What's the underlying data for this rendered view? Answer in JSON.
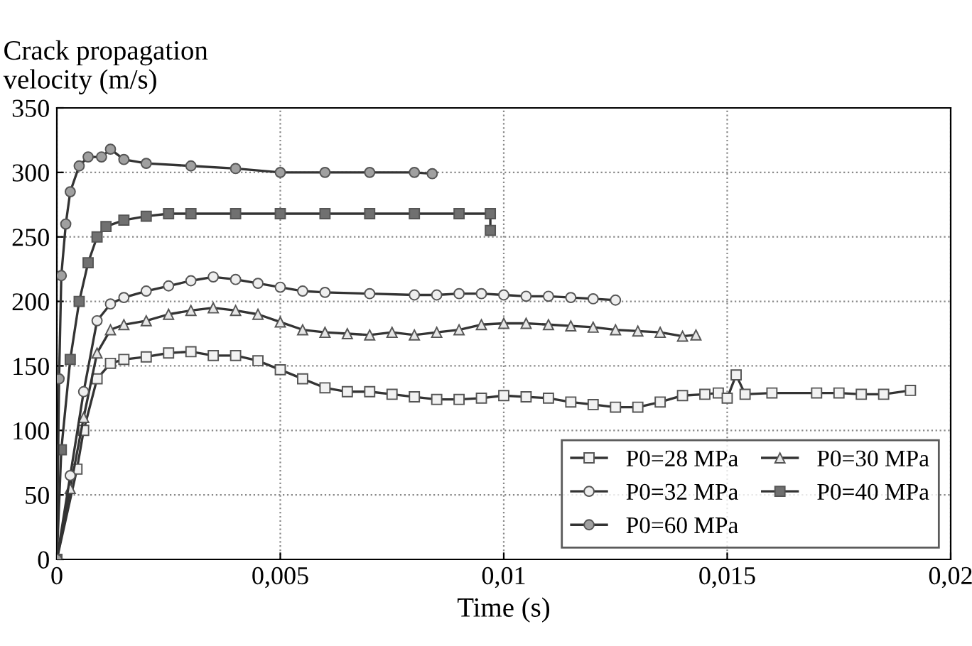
{
  "chart_data": {
    "type": "line",
    "xlabel": "Time (s)",
    "ylabel": "Crack propagation\nvelocity (m/s)",
    "xlim": [
      0,
      0.02
    ],
    "xticks": [
      0,
      {
        "value": 0.005,
        "label": "0,005"
      },
      {
        "value": 0.01,
        "label": "0,01"
      },
      {
        "value": 0.015,
        "label": "0,015"
      },
      {
        "value": 0.02,
        "label": "0,02"
      }
    ],
    "ylim": [
      0,
      350
    ],
    "yticks": [
      0,
      50,
      100,
      150,
      200,
      250,
      300,
      350
    ],
    "grid": true,
    "legend": "bottom right",
    "line_style": "solid",
    "series": [
      {
        "name": "P0=28 MPa",
        "color": "#f2f2f2",
        "marker": "square",
        "x": [
          0,
          0.00045,
          0.0006,
          0.0009,
          0.0012,
          0.0015,
          0.002,
          0.0025,
          0.003,
          0.0035,
          0.004,
          0.0045,
          0.005,
          0.0055,
          0.006,
          0.0065,
          0.007,
          0.0075,
          0.008,
          0.0085,
          0.009,
          0.0095,
          0.01,
          0.0105,
          0.011,
          0.0115,
          0.012,
          0.0125,
          0.013,
          0.0135,
          0.014,
          0.0145,
          0.0148,
          0.015,
          0.0152,
          0.0154,
          0.016,
          0.017,
          0.0175,
          0.018,
          0.0185,
          0.0191
        ],
        "values": [
          0,
          70,
          100,
          140,
          152,
          155,
          157,
          160,
          161,
          158,
          158,
          154,
          147,
          140,
          133,
          130,
          130,
          128,
          126,
          124,
          124,
          125,
          127,
          126,
          125,
          122,
          120,
          118,
          118,
          122,
          127,
          128,
          129,
          125,
          143,
          128,
          129,
          129,
          129,
          128,
          128,
          131
        ]
      },
      {
        "name": "P0=30 MPa",
        "color": "#e6e6e6",
        "marker": "triangle",
        "x": [
          0,
          0.0003,
          0.0006,
          0.0009,
          0.0012,
          0.0015,
          0.002,
          0.0025,
          0.003,
          0.0035,
          0.004,
          0.0045,
          0.005,
          0.0055,
          0.006,
          0.0065,
          0.007,
          0.0075,
          0.008,
          0.0085,
          0.009,
          0.0095,
          0.01,
          0.0105,
          0.011,
          0.0115,
          0.012,
          0.0125,
          0.013,
          0.0135,
          0.014,
          0.0143
        ],
        "values": [
          0,
          55,
          110,
          160,
          178,
          182,
          185,
          190,
          193,
          195,
          193,
          190,
          184,
          178,
          176,
          175,
          174,
          176,
          174,
          176,
          178,
          182,
          183,
          183,
          182,
          181,
          180,
          178,
          177,
          176,
          173,
          174
        ]
      },
      {
        "name": "P0=32 MPa",
        "color": "#eeeeee",
        "marker": "circle",
        "x": [
          0,
          0.0003,
          0.0006,
          0.0009,
          0.0012,
          0.0015,
          0.002,
          0.0025,
          0.003,
          0.0035,
          0.004,
          0.0045,
          0.005,
          0.0055,
          0.006,
          0.007,
          0.008,
          0.0085,
          0.009,
          0.0095,
          0.01,
          0.0105,
          0.011,
          0.0115,
          0.012,
          0.0125
        ],
        "values": [
          0,
          65,
          130,
          185,
          198,
          203,
          208,
          212,
          216,
          219,
          217,
          214,
          211,
          208,
          207,
          206,
          205,
          205,
          206,
          206,
          205,
          204,
          204,
          203,
          202,
          201
        ]
      },
      {
        "name": "P0=40 MPa",
        "color": "#707070",
        "marker": "square",
        "x": [
          0,
          0.0001,
          0.0003,
          0.0005,
          0.0007,
          0.0009,
          0.0011,
          0.0015,
          0.002,
          0.0025,
          0.003,
          0.004,
          0.005,
          0.006,
          0.007,
          0.008,
          0.009,
          0.0097,
          0.0097
        ],
        "values": [
          0,
          85,
          155,
          200,
          230,
          250,
          258,
          263,
          266,
          268,
          268,
          268,
          268,
          268,
          268,
          268,
          268,
          268,
          255
        ]
      },
      {
        "name": "P0=60 MPa",
        "color": "#a0a0a0",
        "marker": "circle",
        "x": [
          0,
          5e-05,
          0.0001,
          0.0002,
          0.0003,
          0.0005,
          0.0007,
          0.001,
          0.0012,
          0.0015,
          0.002,
          0.003,
          0.004,
          0.005,
          0.006,
          0.007,
          0.008,
          0.0084
        ],
        "values": [
          0,
          140,
          220,
          260,
          285,
          305,
          312,
          312,
          318,
          310,
          307,
          305,
          303,
          300,
          300,
          300,
          300,
          299
        ]
      }
    ]
  }
}
